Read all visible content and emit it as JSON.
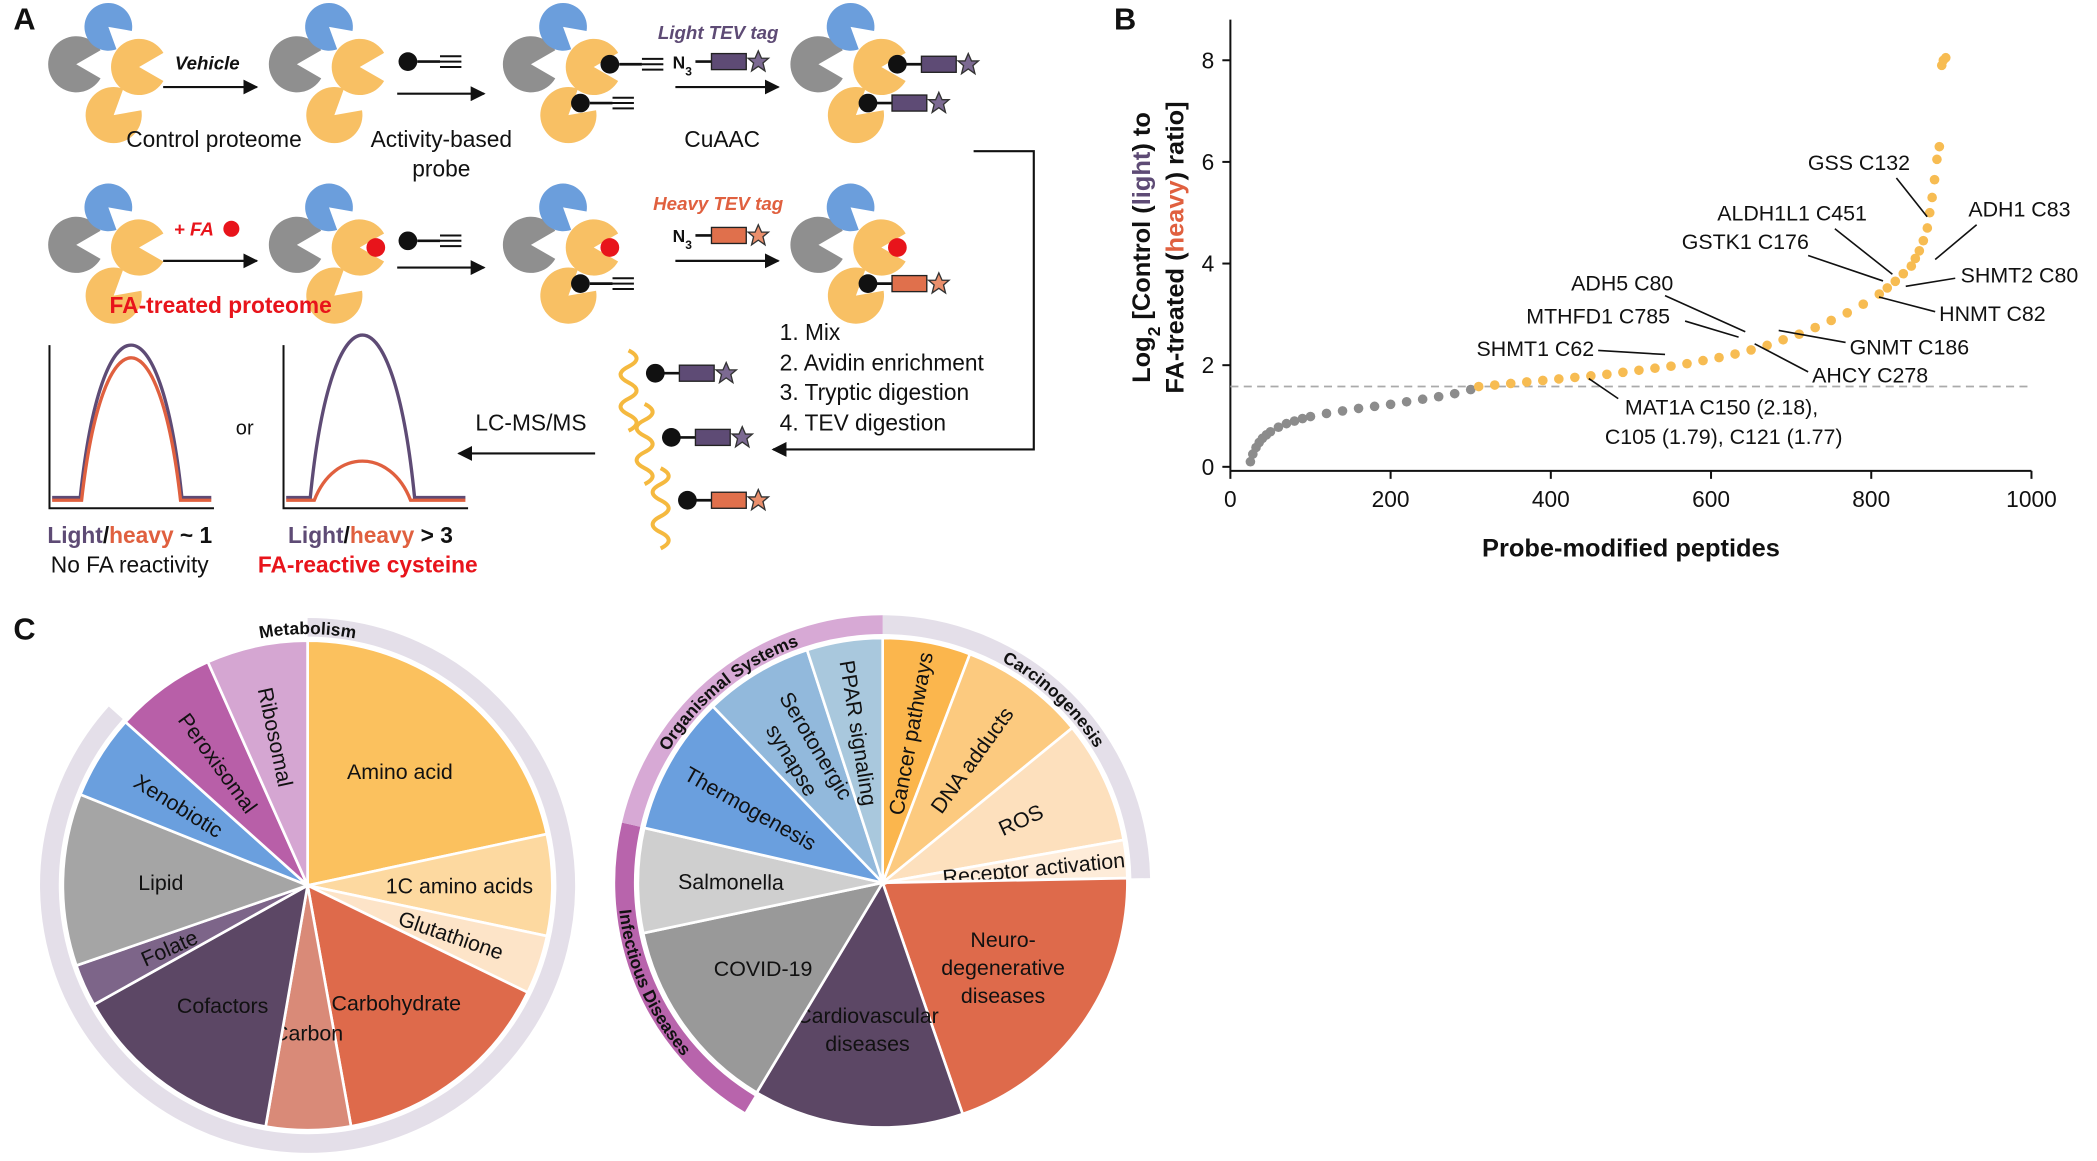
{
  "panel_labels": [
    "A",
    "B",
    "C"
  ],
  "scheme": {
    "vehicle": "Vehicle",
    "control_proteome": "Control proteome",
    "probe": [
      "Activity-based",
      "probe"
    ],
    "cuaac": "CuAAC",
    "light_tag": "Light TEV tag",
    "azide": [
      "N",
      "3"
    ],
    "fa_label": "+ FA",
    "fa_proteome": "FA-treated proteome",
    "heavy_tag": "Heavy TEV tag",
    "steps": [
      "1. Mix",
      "2. Avidin enrichment",
      "3. Tryptic digestion",
      "4. TEV digestion"
    ],
    "lcms": "LC-MS/MS",
    "or": "or",
    "ratio1": [
      "Light",
      "/",
      "heavy",
      " ~ 1"
    ],
    "outcome1": "No FA reactivity",
    "ratio2": [
      "Light",
      "/",
      "heavy",
      " > 3"
    ],
    "outcome2": "FA-reactive cysteine"
  },
  "chart_data": [
    {
      "type": "scatter",
      "xlabel": "Probe-modified peptides",
      "ylabel": [
        [
          "Log",
          "2",
          " [Control (",
          "light",
          ") to"
        ],
        [
          "FA-treated (",
          "heavy",
          ") ratio]"
        ]
      ],
      "xlim": [
        0,
        1000
      ],
      "ylim": [
        0,
        8.8
      ],
      "xticks": [
        0,
        200,
        400,
        600,
        800,
        1000
      ],
      "yticks": [
        0,
        2,
        4,
        6,
        8
      ],
      "threshold": 1.58,
      "series": [
        {
          "color": "#8c8c8c",
          "x": [
            25,
            28,
            32,
            36,
            40,
            45,
            50,
            60,
            70,
            80,
            90,
            100,
            120,
            140,
            160,
            180,
            200,
            220,
            240,
            260,
            280,
            300
          ],
          "values": [
            0.1,
            0.25,
            0.38,
            0.48,
            0.56,
            0.63,
            0.69,
            0.78,
            0.85,
            0.9,
            0.95,
            0.99,
            1.05,
            1.1,
            1.15,
            1.19,
            1.23,
            1.28,
            1.33,
            1.38,
            1.44,
            1.52
          ]
        },
        {
          "color": "#f7bc52",
          "x": [
            310,
            330,
            350,
            370,
            390,
            410,
            430,
            450,
            470,
            490,
            510,
            530,
            550,
            570,
            590,
            610,
            630,
            650,
            670,
            690,
            710,
            730,
            750,
            770,
            790,
            810,
            820,
            830,
            840,
            850,
            855,
            860,
            865,
            870,
            873,
            876,
            879,
            882,
            885,
            888,
            890,
            893
          ],
          "values": [
            1.58,
            1.61,
            1.64,
            1.67,
            1.7,
            1.73,
            1.76,
            1.79,
            1.82,
            1.86,
            1.9,
            1.94,
            1.98,
            2.03,
            2.09,
            2.15,
            2.22,
            2.3,
            2.39,
            2.5,
            2.61,
            2.74,
            2.88,
            3.03,
            3.2,
            3.4,
            3.52,
            3.65,
            3.8,
            3.95,
            4.1,
            4.25,
            4.45,
            4.7,
            5.0,
            5.3,
            5.65,
            6.05,
            6.3,
            7.9,
            8.0,
            8.05
          ]
        }
      ],
      "annotations": [
        [
          "GSS C132"
        ],
        [
          "ALDH1L1 C451"
        ],
        [
          "ADH1 C83"
        ],
        [
          "GSTK1 C176"
        ],
        [
          "SHMT2 C80"
        ],
        [
          "ADH5 C80"
        ],
        [
          "HNMT C82"
        ],
        [
          "MTHFD1 C785"
        ],
        [
          "GNMT C186"
        ],
        [
          "SHMT1 C62"
        ],
        [
          "AHCY C278"
        ],
        [
          "MAT1A C150 (2.18),",
          "C105 (1.79), C121 (1.77)"
        ]
      ]
    },
    {
      "type": "pie",
      "labels": [
        [
          "Amino acid"
        ],
        [
          "1C amino acids"
        ],
        [
          "Glutathione"
        ],
        [
          "Carbohydrate"
        ],
        [
          "Carbon"
        ],
        [
          "Cofactors"
        ],
        [
          "Folate"
        ],
        [
          "Lipid"
        ],
        [
          "Xenobiotic"
        ],
        [
          "Peroxisomal"
        ],
        [
          "Ribosomal"
        ]
      ],
      "values": [
        21.7,
        6.7,
        3.9,
        15,
        5.6,
        14.2,
        2.8,
        11.4,
        5.6,
        6.7,
        6.7
      ],
      "colors": [
        "#fbc15e",
        "#fdd9a0",
        "#fde4c8",
        "#de6a4b",
        "#d98a78",
        "#5c4765",
        "#7d6589",
        "#a5a5a5",
        "#6a9fde",
        "#b85fa8",
        "#d5a6d2"
      ],
      "groups": [
        {
          "name": "Metabolism",
          "color": "#e4dfe9"
        }
      ]
    },
    {
      "type": "pie",
      "labels": [
        [
          "Cancer pathways"
        ],
        [
          "DNA adducts"
        ],
        [
          "ROS"
        ],
        [
          "Receptor activation"
        ],
        [
          "Neuro-",
          "degenerative",
          "diseases"
        ],
        [
          "Cardiovascular",
          "diseases"
        ],
        [
          "COVID-19"
        ],
        [
          "Salmonella"
        ],
        [
          "Thermogenesis"
        ],
        [
          "Serotonergic",
          "synapse"
        ],
        [
          "PPAR signaling"
        ]
      ],
      "values": [
        5.8,
        8.3,
        8.1,
        2.5,
        20,
        13.9,
        13.1,
        6.9,
        9.2,
        7.2,
        5
      ],
      "colors": [
        "#fbb64d",
        "#fcca7f",
        "#fde0bd",
        "#feecd9",
        "#de6a4b",
        "#5c4765",
        "#999999",
        "#cfcfcf",
        "#6a9fde",
        "#92b9dc",
        "#a9c8dd"
      ],
      "groups": [
        {
          "name": "Carcinogenesis",
          "color": "#e4dfe9"
        },
        {
          "name": "Infectious Diseases",
          "color": "#b864ac"
        },
        {
          "name": "Organismal Systems",
          "color": "#d7a9d5"
        }
      ]
    }
  ]
}
